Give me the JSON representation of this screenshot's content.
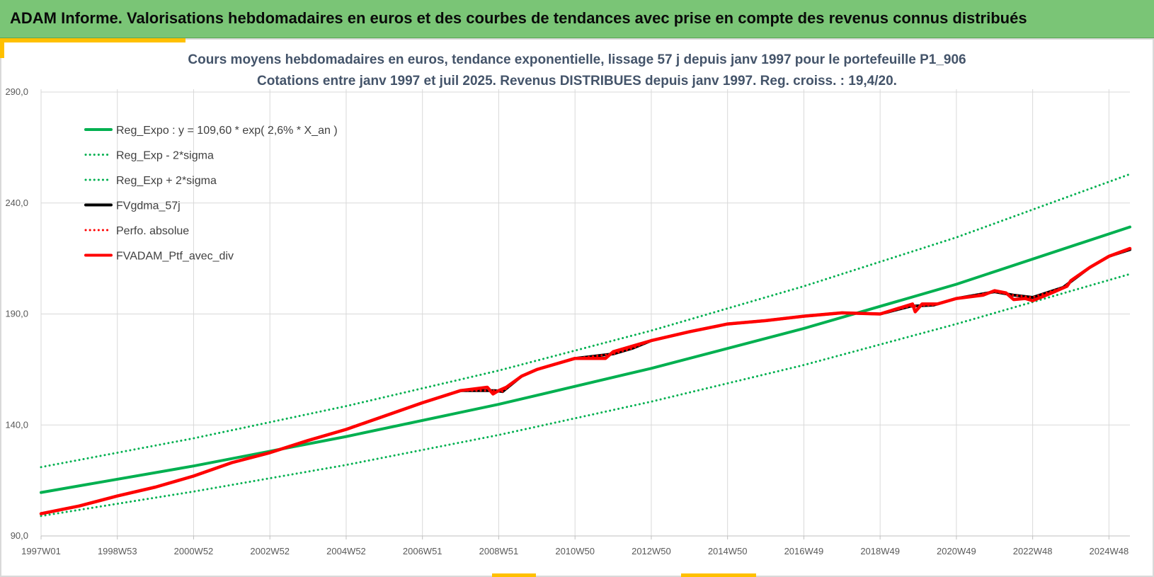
{
  "banner": {
    "title": "ADAM Informe. Valorisations hebdomadaires en euros et des courbes de tendances avec prise en compte des revenus connus distribués"
  },
  "colors": {
    "banner_bg": "#7ac576",
    "accent": "#ffc000",
    "trend_green": "#00b050",
    "series_red": "#ff0000",
    "series_black": "#000000",
    "title_text": "#44546a",
    "gridline": "#d9d9d9"
  },
  "chart_data": {
    "type": "line",
    "title": "Cours moyens hebdomadaires  en euros, tendance exponentielle, lissage 57 j depuis janv 1997 pour le portefeuille P1_906",
    "subtitle": "Cotations entre janv 1997 et juil 2025. Revenus DISTRIBUES depuis janv 1997. Reg. croiss. : 19,4/20.",
    "xlabel": "",
    "ylabel": "",
    "x_start_year": 1997.0,
    "x_end_year": 2025.55,
    "x_ticks": [
      {
        "label": "1997W01",
        "year": 1997.0
      },
      {
        "label": "1998W53",
        "year": 1999.0
      },
      {
        "label": "2000W52",
        "year": 2001.0
      },
      {
        "label": "2002W52",
        "year": 2003.0
      },
      {
        "label": "2004W52",
        "year": 2005.0
      },
      {
        "label": "2006W51",
        "year": 2007.0
      },
      {
        "label": "2008W51",
        "year": 2009.0
      },
      {
        "label": "2010W50",
        "year": 2011.0
      },
      {
        "label": "2012W50",
        "year": 2013.0
      },
      {
        "label": "2014W50",
        "year": 2015.0
      },
      {
        "label": "2016W49",
        "year": 2017.0
      },
      {
        "label": "2018W49",
        "year": 2019.0
      },
      {
        "label": "2020W49",
        "year": 2021.0
      },
      {
        "label": "2022W48",
        "year": 2023.0
      },
      {
        "label": "2024W48",
        "year": 2025.0
      }
    ],
    "ylim": [
      90,
      290
    ],
    "y_ticks": [
      {
        "label": "90,0",
        "value": 90
      },
      {
        "label": "140,0",
        "value": 140
      },
      {
        "label": "190,0",
        "value": 190
      },
      {
        "label": "240,0",
        "value": 240
      },
      {
        "label": "290,0",
        "value": 290
      }
    ],
    "grid": true,
    "legend_position": "top-left",
    "series": [
      {
        "name": "Reg_Expo : y = 109,60 * exp( 2,6% *  X_an )",
        "style": "solid",
        "color": "#00b050",
        "x": [
          1997.0,
          2001.0,
          2005.0,
          2009.0,
          2013.0,
          2017.0,
          2021.0,
          2025.55
        ],
        "values": [
          109.6,
          121.5,
          134.8,
          149.3,
          165.5,
          183.5,
          203.4,
          229.2
        ]
      },
      {
        "name": "Reg_Exp - 2*sigma",
        "style": "dotted",
        "color": "#00b050",
        "x": [
          1997.0,
          2001.0,
          2005.0,
          2009.0,
          2013.0,
          2017.0,
          2021.0,
          2025.55
        ],
        "values": [
          99.0,
          110.0,
          122.0,
          135.5,
          150.5,
          167.0,
          185.5,
          208.0
        ]
      },
      {
        "name": "Reg_Exp + 2*sigma",
        "style": "dotted",
        "color": "#00b050",
        "x": [
          1997.0,
          2001.0,
          2005.0,
          2009.0,
          2013.0,
          2017.0,
          2021.0,
          2025.55
        ],
        "values": [
          121.0,
          134.0,
          148.5,
          164.5,
          182.5,
          202.5,
          224.5,
          253.0
        ]
      },
      {
        "name": "FVgdma_57j",
        "style": "solid",
        "color": "#000000",
        "x": [
          1997.0,
          1998.0,
          1999.0,
          2000.0,
          2001.0,
          2002.0,
          2003.0,
          2004.0,
          2005.0,
          2006.0,
          2007.0,
          2008.0,
          2008.9,
          2009.1,
          2009.6,
          2010.0,
          2011.0,
          2012.0,
          2012.5,
          2013.0,
          2014.0,
          2015.0,
          2016.0,
          2017.0,
          2018.0,
          2019.0,
          2019.8,
          2020.4,
          2021.0,
          2022.0,
          2022.5,
          2023.0,
          2023.8,
          2024.5,
          2025.0,
          2025.55
        ],
        "values": [
          100.0,
          103.5,
          108.0,
          112.0,
          117.0,
          123.0,
          127.5,
          133.0,
          138.0,
          144.0,
          150.0,
          155.5,
          155.5,
          155.0,
          162.0,
          165.0,
          170.0,
          172.0,
          174.5,
          178.0,
          182.0,
          185.5,
          187.0,
          189.0,
          190.5,
          190.0,
          193.5,
          194.0,
          197.0,
          200.0,
          198.5,
          197.5,
          202.0,
          211.0,
          216.0,
          219.0
        ]
      },
      {
        "name": "Perfo. absolue",
        "style": "dotted",
        "color": "#ff0000",
        "x": [
          1997.0,
          1998.0,
          1999.0,
          2000.0,
          2001.0,
          2002.0,
          2003.0,
          2004.0,
          2005.0,
          2006.0,
          2007.0,
          2008.0,
          2008.9,
          2009.1,
          2009.6,
          2010.0,
          2011.0,
          2012.0,
          2012.5,
          2013.0,
          2014.0,
          2015.0,
          2016.0,
          2017.0,
          2018.0,
          2019.0,
          2019.8,
          2020.4,
          2021.0,
          2022.0,
          2022.5,
          2023.0,
          2023.8,
          2024.5,
          2025.0,
          2025.55
        ],
        "values": [
          100.0,
          103.5,
          108.0,
          112.0,
          117.0,
          123.0,
          127.5,
          133.0,
          138.0,
          144.0,
          150.0,
          155.5,
          155.5,
          155.0,
          162.0,
          165.0,
          170.0,
          172.0,
          174.5,
          178.0,
          182.0,
          185.5,
          187.0,
          189.0,
          190.5,
          190.0,
          193.5,
          194.0,
          197.0,
          200.0,
          198.5,
          197.5,
          202.0,
          211.0,
          216.0,
          219.0
        ]
      },
      {
        "name": "FVADAM_Ptf_avec_div",
        "style": "solid",
        "color": "#ff0000",
        "x": [
          1997.0,
          1998.0,
          1999.0,
          2000.0,
          2001.0,
          2002.0,
          2003.0,
          2004.0,
          2005.0,
          2006.0,
          2007.0,
          2008.0,
          2008.7,
          2008.85,
          2009.0,
          2009.2,
          2009.6,
          2010.0,
          2011.0,
          2011.8,
          2012.0,
          2013.0,
          2014.0,
          2015.0,
          2016.0,
          2017.0,
          2018.0,
          2019.0,
          2019.85,
          2019.92,
          2020.1,
          2020.5,
          2021.0,
          2021.7,
          2022.0,
          2022.3,
          2022.5,
          2022.8,
          2023.0,
          2023.5,
          2023.9,
          2024.0,
          2024.5,
          2025.0,
          2025.55
        ],
        "values": [
          100.0,
          103.5,
          108.0,
          112.0,
          117.0,
          123.0,
          127.5,
          133.0,
          138.0,
          144.0,
          150.0,
          155.5,
          157.0,
          154.0,
          155.5,
          157.0,
          162.0,
          165.0,
          170.0,
          170.0,
          173.0,
          178.0,
          182.0,
          185.5,
          187.0,
          189.0,
          190.5,
          190.0,
          194.5,
          191.0,
          194.5,
          194.5,
          197.0,
          198.5,
          200.5,
          199.5,
          196.5,
          197.0,
          196.0,
          199.5,
          202.5,
          205.0,
          211.0,
          216.0,
          219.5
        ]
      }
    ]
  }
}
